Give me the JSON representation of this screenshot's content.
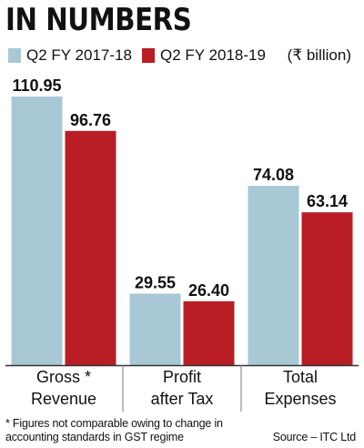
{
  "title": "IN NUMBERS",
  "unit_label": "(₹ billion)",
  "footnote_lines": [
    "* Figures not comparable owing to change in",
    "accounting standards in GST regime"
  ],
  "source": "Source – ITC Ltd",
  "colors": {
    "series_0": "#a8c8d6",
    "series_1": "#b81e24"
  },
  "chart_data": {
    "type": "bar",
    "categories": [
      [
        "Gross *",
        "Revenue"
      ],
      [
        "Profit",
        "after Tax"
      ],
      [
        "Total",
        "Expenses"
      ]
    ],
    "series": [
      {
        "name": "Q2 FY 2017-18",
        "values": [
          110.95,
          29.55,
          74.08
        ]
      },
      {
        "name": "Q2 FY 2018-19",
        "values": [
          96.76,
          26.4,
          63.14
        ]
      }
    ],
    "data_labels": [
      [
        "110.95",
        "29.55",
        "74.08"
      ],
      [
        "96.76",
        "26.40",
        "63.14"
      ]
    ],
    "ylim": [
      0,
      120
    ],
    "title": "",
    "xlabel": "",
    "ylabel": "",
    "grid": false,
    "legend_position": "top"
  }
}
